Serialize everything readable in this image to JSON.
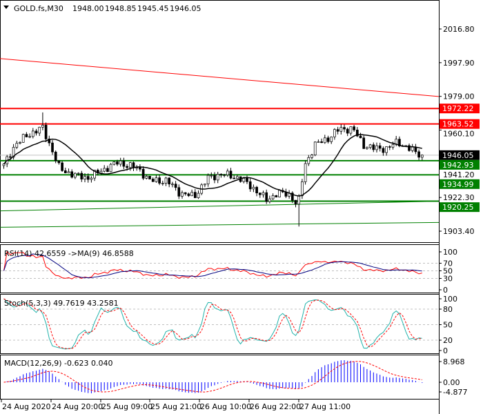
{
  "header": {
    "symbol": "GOLD.fs,M30",
    "open": "1948.00",
    "high": "1948.85",
    "low": "1945.45",
    "close": "1946.05"
  },
  "price_axis": [
    "2016.80",
    "1997.90",
    "1979.00",
    "1960.10",
    "1941.20",
    "1922.30",
    "1903.40"
  ],
  "price_axis_values": [
    2016.8,
    1997.9,
    1979.0,
    1960.1,
    1941.2,
    1922.3,
    1903.4
  ],
  "levels": [
    {
      "label": "1972.22",
      "value": 1972.22,
      "color": "#ff0000"
    },
    {
      "label": "1963.52",
      "value": 1963.52,
      "color": "#ff0000"
    },
    {
      "label": "1942.93",
      "value": 1942.93,
      "color": "#008000"
    },
    {
      "label": "1934.99",
      "value": 1934.99,
      "color": "#008000"
    },
    {
      "label": "1920.25",
      "value": 1920.25,
      "color": "#008000"
    }
  ],
  "current_price": {
    "label": "1946.05",
    "value": 1946.05
  },
  "trendlines": [
    {
      "color": "#ff0000",
      "from": 2000.2,
      "to": 1978.9
    },
    {
      "color": "#008000",
      "from": 1914.8,
      "to": 1920.2
    },
    {
      "color": "#008000",
      "from": 1905.6,
      "to": 1908.3
    }
  ],
  "price_path": [
    [
      5,
      1940.9
    ],
    [
      20,
      1951.8
    ],
    [
      40,
      1957.6
    ],
    [
      60,
      1961.5
    ],
    [
      75,
      1947.9
    ],
    [
      85,
      1938.2
    ],
    [
      110,
      1934.4
    ],
    [
      125,
      1933.2
    ],
    [
      150,
      1938.2
    ],
    [
      170,
      1942.1
    ],
    [
      200,
      1938.2
    ],
    [
      215,
      1931.7
    ],
    [
      240,
      1931.7
    ],
    [
      260,
      1924.7
    ],
    [
      280,
      1922.8
    ],
    [
      300,
      1933.2
    ],
    [
      320,
      1935.5
    ],
    [
      345,
      1933.2
    ],
    [
      365,
      1927.8
    ],
    [
      385,
      1920.8
    ],
    [
      400,
      1924.7
    ],
    [
      420,
      1923.9
    ],
    [
      430,
      1917
    ],
    [
      440,
      1940.2
    ],
    [
      455,
      1951.8
    ],
    [
      475,
      1955.7
    ],
    [
      490,
      1960.7
    ],
    [
      510,
      1960.7
    ],
    [
      525,
      1951.8
    ],
    [
      540,
      1949.8
    ],
    [
      560,
      1949.8
    ],
    [
      575,
      1953.7
    ],
    [
      590,
      1949.8
    ],
    [
      610,
      1946.05
    ]
  ],
  "rsi": {
    "title": "RSI(14) 42.6559  ->MA(9) 46.8588",
    "axis": [
      "100",
      "70",
      "50",
      "30",
      "0"
    ],
    "axis_values": [
      100,
      70,
      50,
      30,
      0
    ]
  },
  "stoch": {
    "title": "Stoch(5,3,3) 49.7619 43.2581",
    "axis": [
      "100",
      "80",
      "50",
      "20",
      "0"
    ],
    "axis_values": [
      100,
      80,
      50,
      20,
      0
    ]
  },
  "macd": {
    "title": "MACD(12,26,9) -0.623 0.040",
    "axis": [
      "8.968",
      "0.00",
      "-4.877"
    ],
    "axis_values": [
      8.968,
      0,
      -4.877
    ]
  },
  "time_axis": [
    "24 Aug 2020",
    "24 Aug 20:00",
    "25 Aug 09:00",
    "25 Aug 21:00",
    "26 Aug 10:00",
    "26 Aug 22:00",
    "27 Aug 11:00"
  ],
  "colors": {
    "rsi": "#ff0000",
    "rsi_ma": "#000080",
    "stoch_main": "#20b2aa",
    "stoch_signal": "#ff0000",
    "macd_hist": "#0000ff",
    "macd_signal": "#ff0000",
    "ma": "#000000"
  }
}
